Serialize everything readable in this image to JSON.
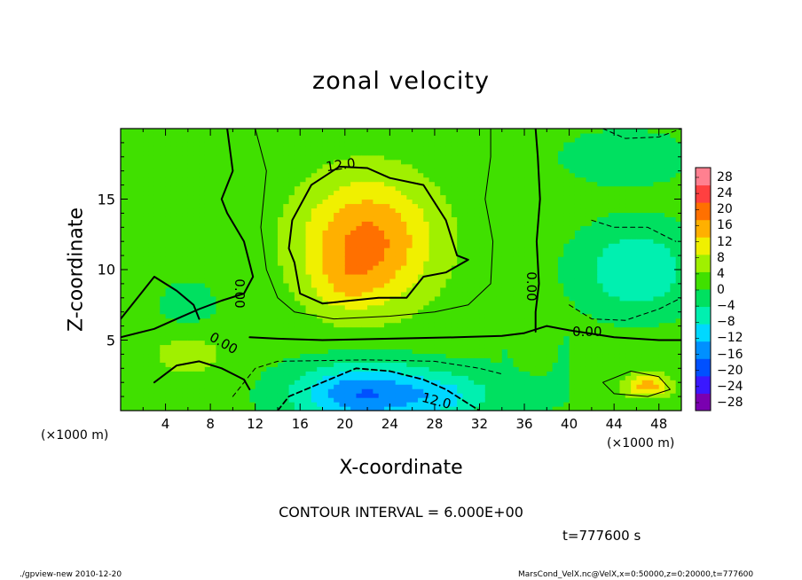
{
  "chart_data": {
    "type": "heatmap",
    "title": "zonal velocity",
    "xlabel": "X-coordinate",
    "ylabel": "Z-coordinate",
    "x_unit": "(×1000 m)",
    "x_unit_right": "(×1000 m)",
    "xlim": [
      0,
      50
    ],
    "ylim": [
      0,
      20
    ],
    "x_ticks": [
      "4",
      "8",
      "12",
      "16",
      "20",
      "24",
      "28",
      "32",
      "36",
      "40",
      "44",
      "48"
    ],
    "y_ticks": [
      "5",
      "10",
      "15"
    ],
    "colorbar_labels": [
      "28",
      "24",
      "20",
      "16",
      "12",
      "8",
      "4",
      "0",
      "−4",
      "−8",
      "−12",
      "−16",
      "−20",
      "−24",
      "−28"
    ],
    "colorbar_range": [
      -30,
      30
    ],
    "contour_labels": [
      "12.0",
      "0.00",
      "0.00",
      "0.00",
      "0.00",
      "12.0"
    ],
    "contour_interval": "CONTOUR INTERVAL = 6.000E+00",
    "time_label": "t=777600 s",
    "features": [
      {
        "kind": "max",
        "x": 22,
        "z": 12,
        "value": 18
      },
      {
        "kind": "min",
        "x": 22,
        "z": 1.5,
        "value": -18
      },
      {
        "kind": "min",
        "x": 46,
        "z": 10,
        "value": -8
      },
      {
        "kind": "max",
        "x": 47,
        "z": 1.8,
        "value": 14
      },
      {
        "kind": "max",
        "x": 6,
        "z": 4,
        "value": 7
      }
    ],
    "colormap": [
      "#7a00b0",
      "#3a18ff",
      "#0050ff",
      "#0090ff",
      "#00d8ff",
      "#00f0b0",
      "#00e060",
      "#40e000",
      "#a0f000",
      "#f0f000",
      "#ffb000",
      "#ff7000",
      "#ff4040",
      "#ff8090"
    ]
  },
  "footer": {
    "left": "./gpview-new  2010-12-20",
    "right": "MarsCond_VelX.nc@VelX,x=0:50000,z=0:20000,t=777600"
  }
}
